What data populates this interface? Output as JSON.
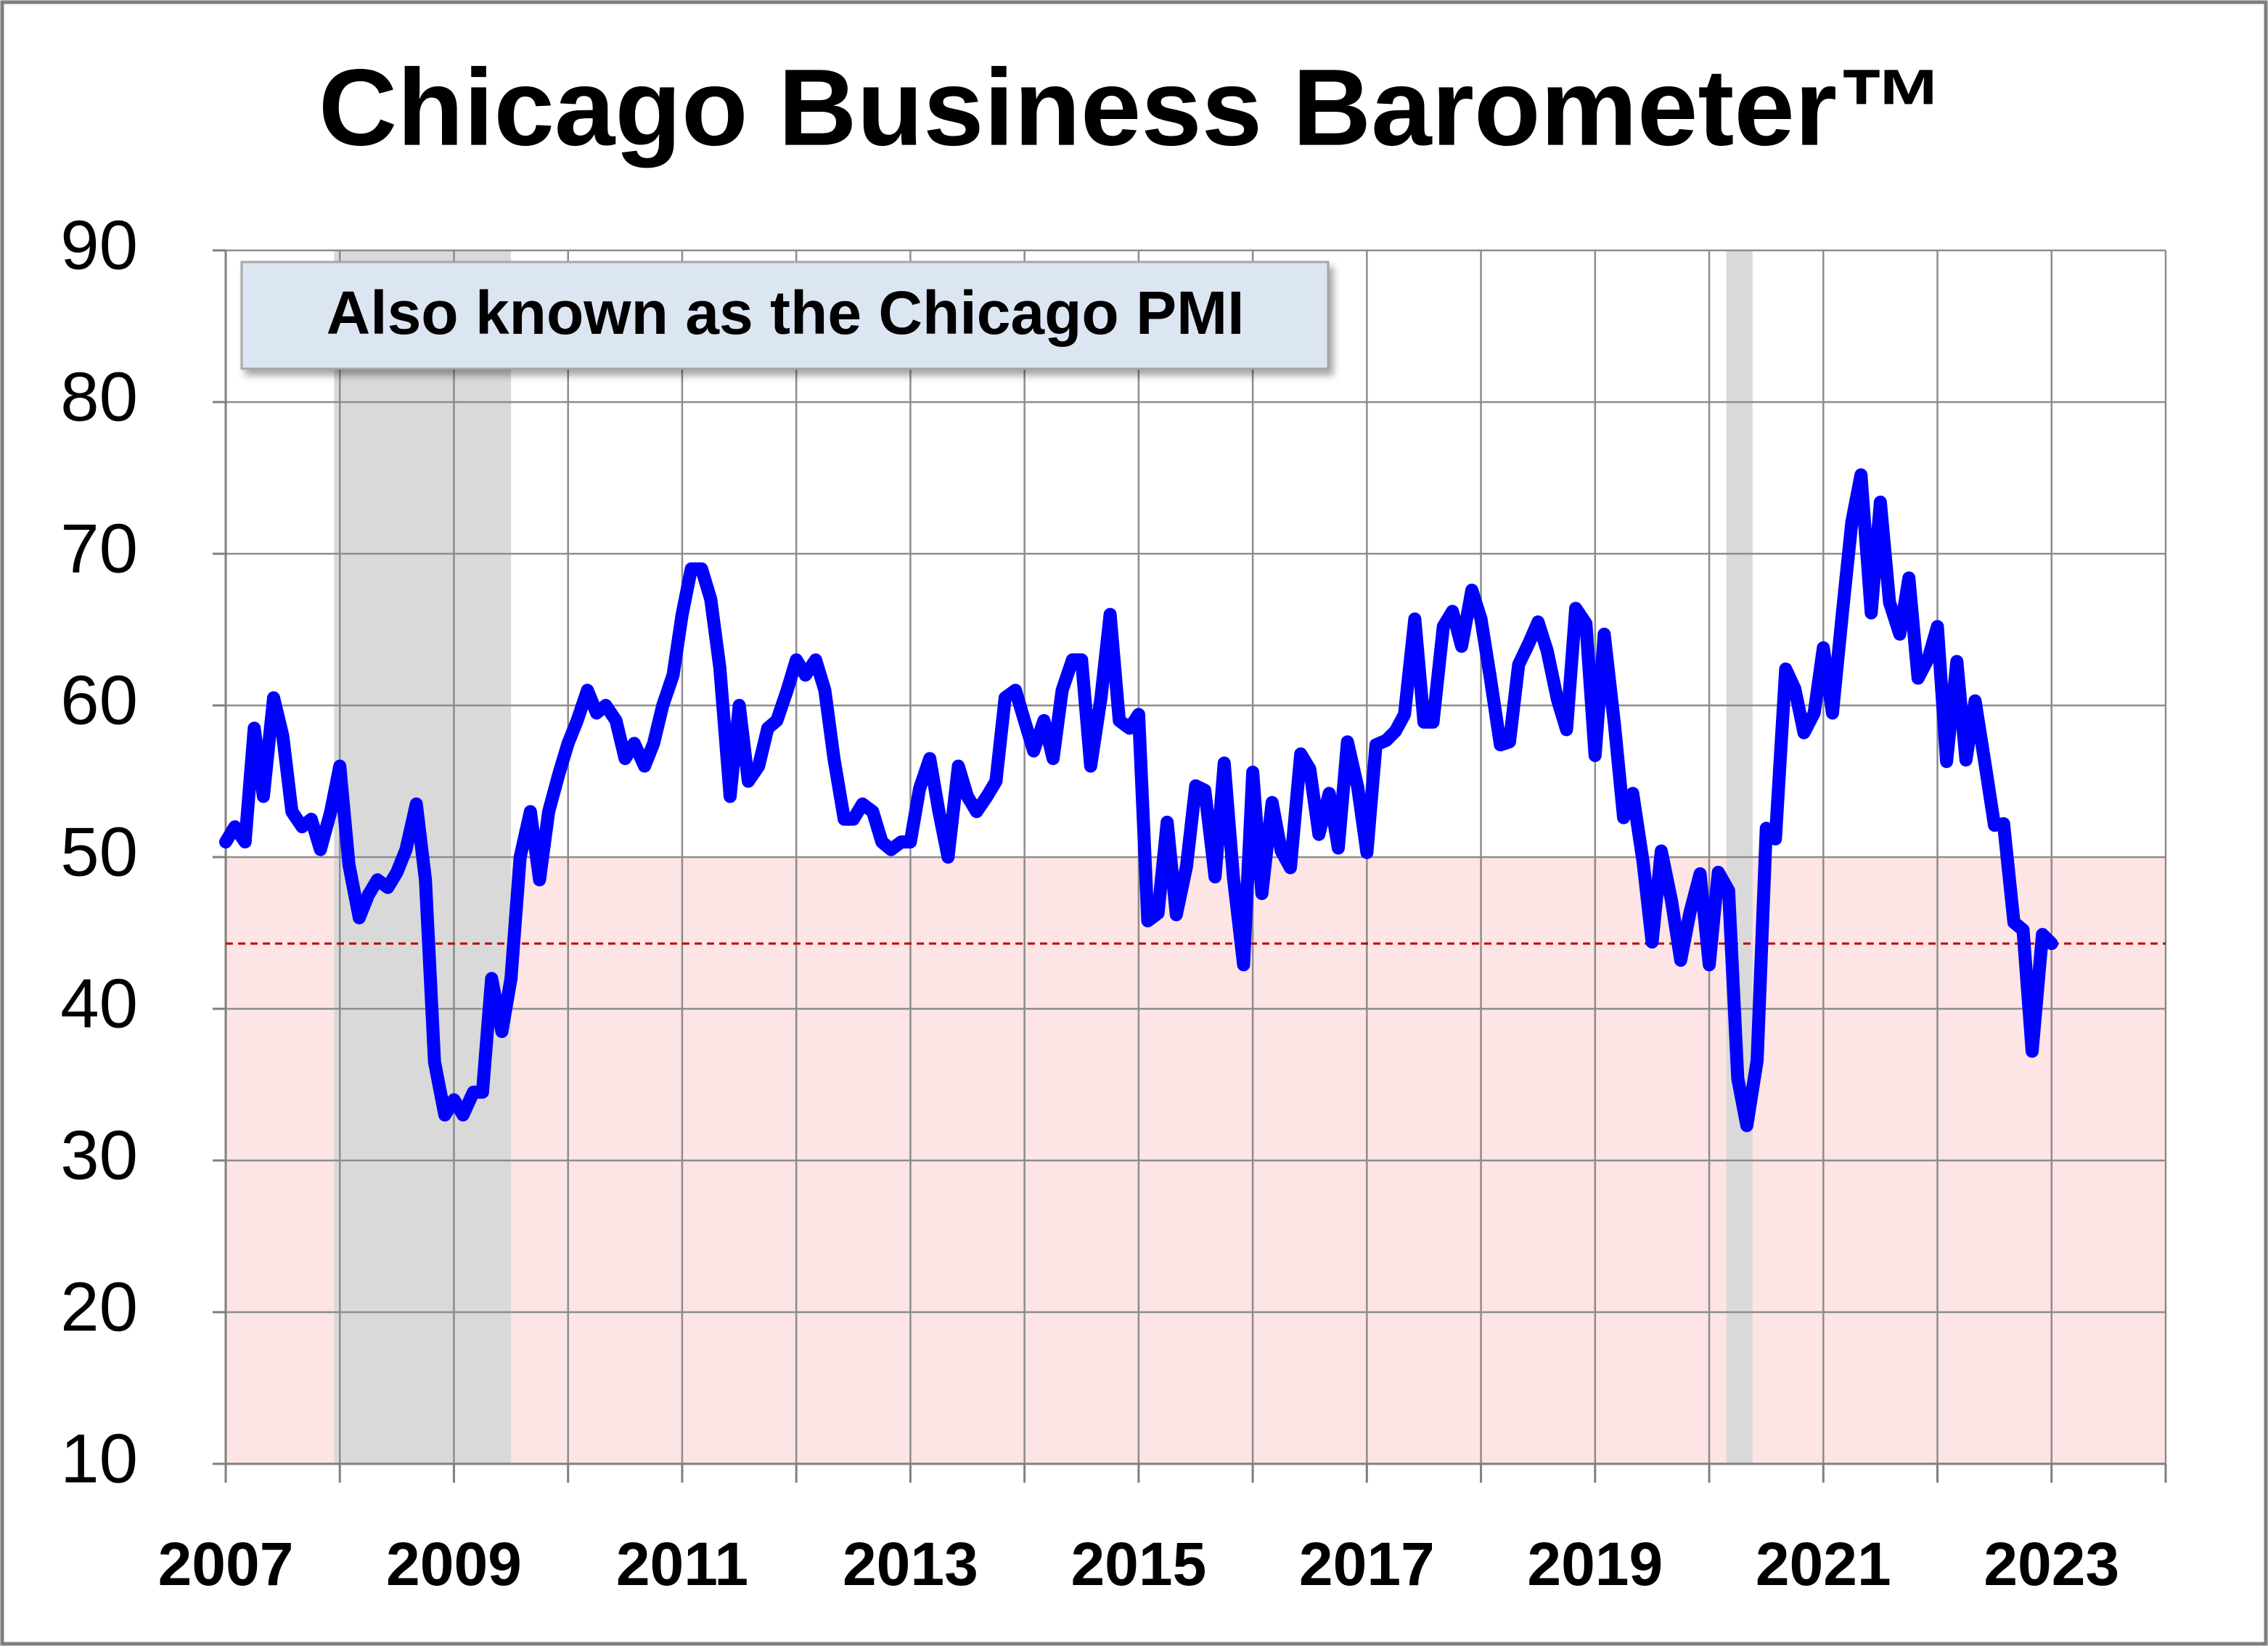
{
  "chart_data": {
    "type": "line",
    "title": "Chicago Business Barometer™",
    "annotation": "Also known as the Chicago PMI",
    "color": "#0000ff",
    "x": [
      2007,
      2007.08,
      2007.17,
      2007.25,
      2007.33,
      2007.42,
      2007.5,
      2007.58,
      2007.67,
      2007.75,
      2007.83,
      2007.92,
      2008,
      2008.08,
      2008.17,
      2008.25,
      2008.33,
      2008.42,
      2008.5,
      2008.58,
      2008.67,
      2008.75,
      2008.83,
      2008.92,
      2009,
      2009.08,
      2009.17,
      2009.25,
      2009.33,
      2009.42,
      2009.5,
      2009.58,
      2009.67,
      2009.75,
      2009.83,
      2009.92,
      2010,
      2010.08,
      2010.17,
      2010.25,
      2010.33,
      2010.42,
      2010.5,
      2010.58,
      2010.67,
      2010.75,
      2010.83,
      2010.92,
      2011,
      2011.08,
      2011.17,
      2011.25,
      2011.33,
      2011.42,
      2011.5,
      2011.58,
      2011.67,
      2011.75,
      2011.83,
      2011.92,
      2012,
      2012.08,
      2012.17,
      2012.25,
      2012.33,
      2012.42,
      2012.5,
      2012.58,
      2012.67,
      2012.75,
      2012.83,
      2012.92,
      2013,
      2013.08,
      2013.17,
      2013.25,
      2013.33,
      2013.42,
      2013.5,
      2013.58,
      2013.67,
      2013.75,
      2013.83,
      2013.92,
      2014,
      2014.08,
      2014.17,
      2014.25,
      2014.33,
      2014.42,
      2014.5,
      2014.58,
      2014.67,
      2014.75,
      2014.83,
      2014.92,
      2015,
      2015.08,
      2015.17,
      2015.25,
      2015.33,
      2015.42,
      2015.5,
      2015.58,
      2015.67,
      2015.75,
      2015.83,
      2015.92,
      2016,
      2016.08,
      2016.17,
      2016.25,
      2016.33,
      2016.42,
      2016.5,
      2016.58,
      2016.67,
      2016.75,
      2016.83,
      2016.92,
      2017,
      2017.08,
      2017.17,
      2017.25,
      2017.33,
      2017.42,
      2017.5,
      2017.58,
      2017.67,
      2017.75,
      2017.83,
      2017.92,
      2018,
      2018.08,
      2018.17,
      2018.25,
      2018.33,
      2018.42,
      2018.5,
      2018.58,
      2018.67,
      2018.75,
      2018.83,
      2018.92,
      2019,
      2019.08,
      2019.17,
      2019.25,
      2019.33,
      2019.42,
      2019.5,
      2019.58,
      2019.67,
      2019.75,
      2019.83,
      2019.92,
      2020,
      2020.08,
      2020.17,
      2020.25,
      2020.33,
      2020.42,
      2020.5,
      2020.58,
      2020.67,
      2020.75,
      2020.83,
      2020.92,
      2021,
      2021.08,
      2021.17,
      2021.25,
      2021.33,
      2021.42,
      2021.5,
      2021.58,
      2021.67,
      2021.75,
      2021.83,
      2021.92,
      2022,
      2022.08,
      2022.17,
      2022.25,
      2022.33,
      2022.42,
      2022.5,
      2022.58,
      2022.67,
      2022.75,
      2022.83,
      2022.92,
      2023
    ],
    "values": [
      51,
      52,
      51,
      58.5,
      54,
      60.5,
      58,
      53,
      52,
      52.5,
      50.5,
      53,
      56,
      49.5,
      46,
      47.5,
      48.5,
      48,
      49,
      50.5,
      53.5,
      48.5,
      36.5,
      33,
      34,
      33,
      34.5,
      34.5,
      42,
      38.5,
      42,
      50,
      53,
      48.5,
      53,
      55.5,
      57.5,
      59,
      61,
      59.5,
      60,
      59,
      56.5,
      57.5,
      56,
      57.5,
      60,
      62,
      66,
      69,
      69,
      67,
      62.5,
      54,
      60,
      55,
      56,
      58.5,
      59,
      61,
      63,
      62,
      63,
      61,
      56.5,
      52.5,
      52.5,
      53.5,
      53,
      51,
      50.5,
      51,
      51,
      54.5,
      56.5,
      53,
      50,
      56,
      54,
      53,
      54,
      55,
      60.5,
      61,
      59,
      57,
      59,
      56.5,
      61,
      63,
      63,
      56,
      60.5,
      66,
      59,
      58.5,
      59.4,
      45.8,
      46.3,
      52.3,
      46.2,
      49.4,
      54.7,
      54.4,
      48.7,
      56.2,
      48.7,
      42.9,
      55.6,
      47.6,
      53.6,
      50.4,
      49.3,
      56.8,
      55.8,
      51.5,
      54.2,
      50.6,
      57.6,
      54.6,
      50.3,
      57.4,
      57.7,
      58.3,
      59.4,
      65.7,
      58.9,
      58.9,
      65.2,
      66.2,
      63.9,
      67.6,
      65.7,
      61.9,
      57.4,
      57.6,
      62.7,
      64.1,
      65.5,
      63.6,
      60.4,
      58.4,
      66.4,
      65.4,
      56.7,
      64.7,
      58.7,
      52.6,
      54.2,
      49.7,
      44.4,
      50.4,
      47.1,
      43.2,
      46.3,
      48.9,
      42.9,
      49,
      47.8,
      35.4,
      32.3,
      36.6,
      51.9,
      51.2,
      62.4,
      61.1,
      58.2,
      59.5,
      63.8,
      59.5,
      66.3,
      72.1,
      75.2,
      66.1,
      73.4,
      66.8,
      64.7,
      68.4,
      61.8,
      63.1,
      65.2,
      56.3,
      62.9,
      56.4,
      60.3,
      56,
      52.1,
      52.2,
      45.7,
      45.2,
      37.2,
      44.9,
      44.3
    ],
    "xlim": [
      2007,
      2024
    ],
    "xticks": [
      2007,
      2009,
      2011,
      2013,
      2015,
      2017,
      2019,
      2021,
      2023
    ],
    "xminorticks": [
      2008,
      2010,
      2012,
      2014,
      2016,
      2018,
      2020,
      2022,
      2024
    ],
    "ylim": [
      10,
      90
    ],
    "yticks": [
      10,
      20,
      30,
      40,
      50,
      60,
      70,
      80,
      90
    ],
    "grid": true,
    "threshold_band": {
      "value": 50,
      "color": "#fde4e5"
    },
    "shaded_periods": [
      [
        2007.95,
        2009.5
      ],
      [
        2020.15,
        2020.38
      ]
    ],
    "shaded_color": "#d9d9d9",
    "reference_line": {
      "value": 44.3,
      "color": "#c00000"
    }
  }
}
